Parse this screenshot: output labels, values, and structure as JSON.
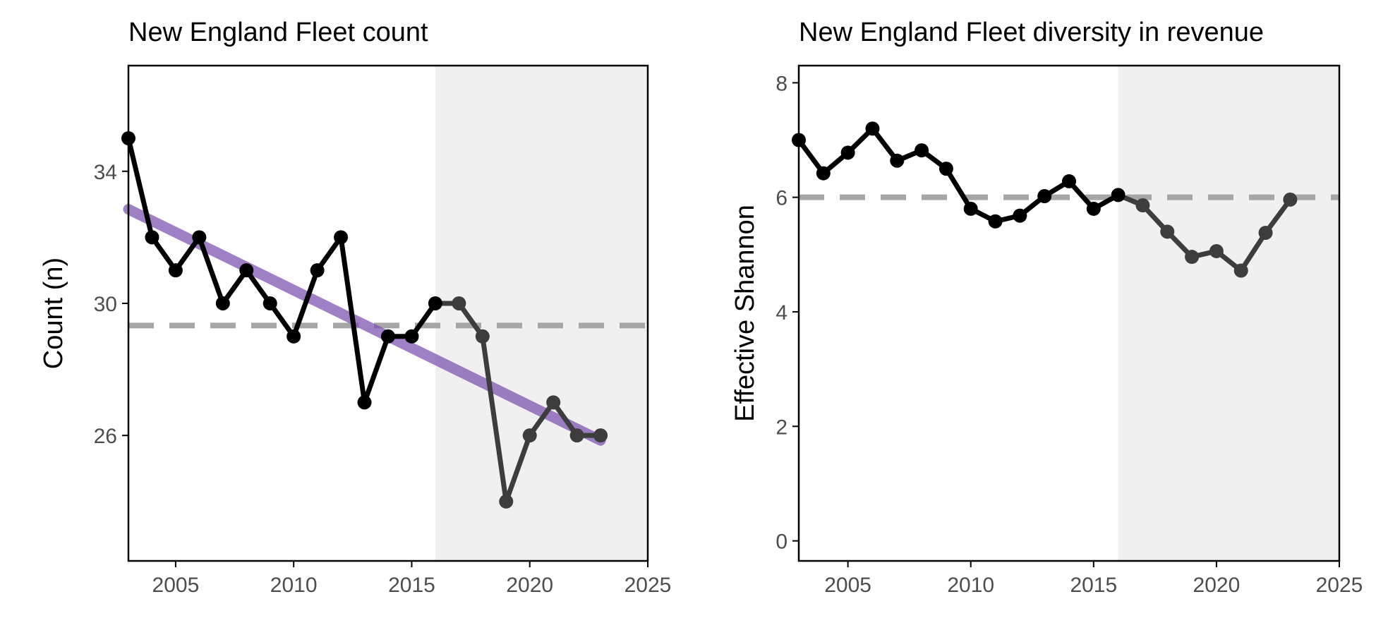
{
  "colors": {
    "line_black": "#000000",
    "line_gray": "#3d3d3d",
    "trend": "#7b4fad",
    "mean_dash": "#a6a6a6",
    "shade": "#f0f0f0",
    "axis": "#000000",
    "tick_text": "#4d4d4d"
  },
  "chart_data": [
    {
      "type": "line",
      "title": "New England Fleet count",
      "xlabel": "",
      "ylabel": "Count (n)",
      "xlim": [
        2003,
        2025
      ],
      "ylim": [
        22.2,
        37.2
      ],
      "xticks": [
        2005,
        2010,
        2015,
        2020,
        2025
      ],
      "yticks": [
        26,
        30,
        34
      ],
      "shaded_region": [
        2016,
        2025
      ],
      "mean_line": 29.33,
      "grid": false,
      "series": [
        {
          "x": [
            2003,
            2004,
            2005,
            2006,
            2007,
            2008,
            2009,
            2010,
            2011,
            2012,
            2013,
            2014,
            2015,
            2016,
            2017,
            2018,
            2019,
            2020,
            2021,
            2022,
            2023
          ],
          "values": [
            35,
            32,
            31,
            32,
            30,
            31,
            30,
            29,
            31,
            32,
            27,
            29,
            29,
            30,
            30,
            29,
            24,
            26,
            27,
            26,
            26
          ]
        }
      ],
      "trend": {
        "x": [
          2003,
          2023
        ],
        "values": [
          32.85,
          25.85
        ]
      }
    },
    {
      "type": "line",
      "title": "New England Fleet diversity in revenue",
      "xlabel": "",
      "ylabel": "Effective Shannon",
      "xlim": [
        2003,
        2025
      ],
      "ylim": [
        -0.35,
        8.3
      ],
      "xticks": [
        2005,
        2010,
        2015,
        2020,
        2025
      ],
      "yticks": [
        0,
        2,
        4,
        6,
        8
      ],
      "shaded_region": [
        2016,
        2025
      ],
      "mean_line": 6.0,
      "grid": false,
      "series": [
        {
          "x": [
            2003,
            2004,
            2005,
            2006,
            2007,
            2008,
            2009,
            2010,
            2011,
            2012,
            2013,
            2014,
            2015,
            2016,
            2017,
            2018,
            2019,
            2020,
            2021,
            2022,
            2023
          ],
          "values": [
            7.0,
            6.42,
            6.78,
            7.2,
            6.64,
            6.82,
            6.5,
            5.8,
            5.58,
            5.68,
            6.02,
            6.28,
            5.8,
            6.04,
            5.86,
            5.4,
            4.96,
            5.06,
            4.72,
            5.38,
            5.96
          ]
        }
      ]
    }
  ]
}
